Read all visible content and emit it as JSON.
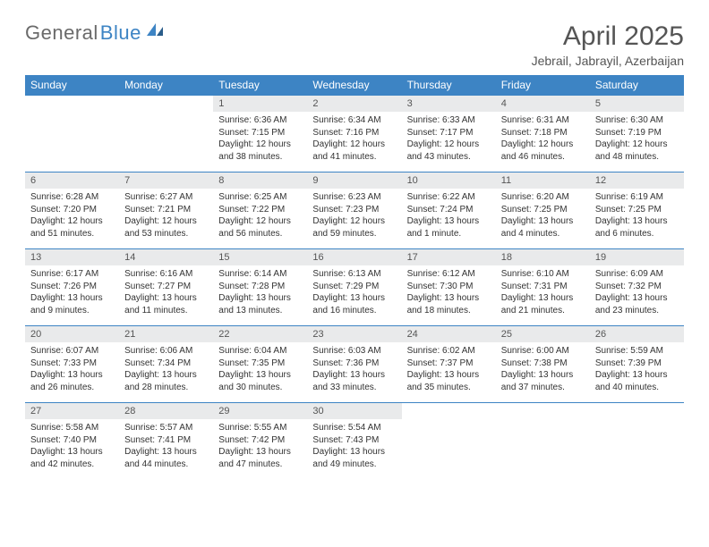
{
  "logo": {
    "text_gray": "General",
    "text_blue": "Blue"
  },
  "header": {
    "month_title": "April 2025",
    "location": "Jebrail, Jabrayil, Azerbaijan"
  },
  "day_headers": [
    "Sunday",
    "Monday",
    "Tuesday",
    "Wednesday",
    "Thursday",
    "Friday",
    "Saturday"
  ],
  "colors": {
    "header_bg": "#3d84c4",
    "daynum_bg": "#e9eaeb",
    "border": "#3d84c4",
    "logo_gray": "#6a6a6a",
    "logo_blue": "#3d84c4"
  },
  "weeks": [
    [
      null,
      null,
      {
        "n": "1",
        "sr": "6:36 AM",
        "ss": "7:15 PM",
        "dl": "12 hours and 38 minutes."
      },
      {
        "n": "2",
        "sr": "6:34 AM",
        "ss": "7:16 PM",
        "dl": "12 hours and 41 minutes."
      },
      {
        "n": "3",
        "sr": "6:33 AM",
        "ss": "7:17 PM",
        "dl": "12 hours and 43 minutes."
      },
      {
        "n": "4",
        "sr": "6:31 AM",
        "ss": "7:18 PM",
        "dl": "12 hours and 46 minutes."
      },
      {
        "n": "5",
        "sr": "6:30 AM",
        "ss": "7:19 PM",
        "dl": "12 hours and 48 minutes."
      }
    ],
    [
      {
        "n": "6",
        "sr": "6:28 AM",
        "ss": "7:20 PM",
        "dl": "12 hours and 51 minutes."
      },
      {
        "n": "7",
        "sr": "6:27 AM",
        "ss": "7:21 PM",
        "dl": "12 hours and 53 minutes."
      },
      {
        "n": "8",
        "sr": "6:25 AM",
        "ss": "7:22 PM",
        "dl": "12 hours and 56 minutes."
      },
      {
        "n": "9",
        "sr": "6:23 AM",
        "ss": "7:23 PM",
        "dl": "12 hours and 59 minutes."
      },
      {
        "n": "10",
        "sr": "6:22 AM",
        "ss": "7:24 PM",
        "dl": "13 hours and 1 minute."
      },
      {
        "n": "11",
        "sr": "6:20 AM",
        "ss": "7:25 PM",
        "dl": "13 hours and 4 minutes."
      },
      {
        "n": "12",
        "sr": "6:19 AM",
        "ss": "7:25 PM",
        "dl": "13 hours and 6 minutes."
      }
    ],
    [
      {
        "n": "13",
        "sr": "6:17 AM",
        "ss": "7:26 PM",
        "dl": "13 hours and 9 minutes."
      },
      {
        "n": "14",
        "sr": "6:16 AM",
        "ss": "7:27 PM",
        "dl": "13 hours and 11 minutes."
      },
      {
        "n": "15",
        "sr": "6:14 AM",
        "ss": "7:28 PM",
        "dl": "13 hours and 13 minutes."
      },
      {
        "n": "16",
        "sr": "6:13 AM",
        "ss": "7:29 PM",
        "dl": "13 hours and 16 minutes."
      },
      {
        "n": "17",
        "sr": "6:12 AM",
        "ss": "7:30 PM",
        "dl": "13 hours and 18 minutes."
      },
      {
        "n": "18",
        "sr": "6:10 AM",
        "ss": "7:31 PM",
        "dl": "13 hours and 21 minutes."
      },
      {
        "n": "19",
        "sr": "6:09 AM",
        "ss": "7:32 PM",
        "dl": "13 hours and 23 minutes."
      }
    ],
    [
      {
        "n": "20",
        "sr": "6:07 AM",
        "ss": "7:33 PM",
        "dl": "13 hours and 26 minutes."
      },
      {
        "n": "21",
        "sr": "6:06 AM",
        "ss": "7:34 PM",
        "dl": "13 hours and 28 minutes."
      },
      {
        "n": "22",
        "sr": "6:04 AM",
        "ss": "7:35 PM",
        "dl": "13 hours and 30 minutes."
      },
      {
        "n": "23",
        "sr": "6:03 AM",
        "ss": "7:36 PM",
        "dl": "13 hours and 33 minutes."
      },
      {
        "n": "24",
        "sr": "6:02 AM",
        "ss": "7:37 PM",
        "dl": "13 hours and 35 minutes."
      },
      {
        "n": "25",
        "sr": "6:00 AM",
        "ss": "7:38 PM",
        "dl": "13 hours and 37 minutes."
      },
      {
        "n": "26",
        "sr": "5:59 AM",
        "ss": "7:39 PM",
        "dl": "13 hours and 40 minutes."
      }
    ],
    [
      {
        "n": "27",
        "sr": "5:58 AM",
        "ss": "7:40 PM",
        "dl": "13 hours and 42 minutes."
      },
      {
        "n": "28",
        "sr": "5:57 AM",
        "ss": "7:41 PM",
        "dl": "13 hours and 44 minutes."
      },
      {
        "n": "29",
        "sr": "5:55 AM",
        "ss": "7:42 PM",
        "dl": "13 hours and 47 minutes."
      },
      {
        "n": "30",
        "sr": "5:54 AM",
        "ss": "7:43 PM",
        "dl": "13 hours and 49 minutes."
      },
      null,
      null,
      null
    ]
  ],
  "labels": {
    "sunrise": "Sunrise:",
    "sunset": "Sunset:",
    "daylight": "Daylight:"
  }
}
